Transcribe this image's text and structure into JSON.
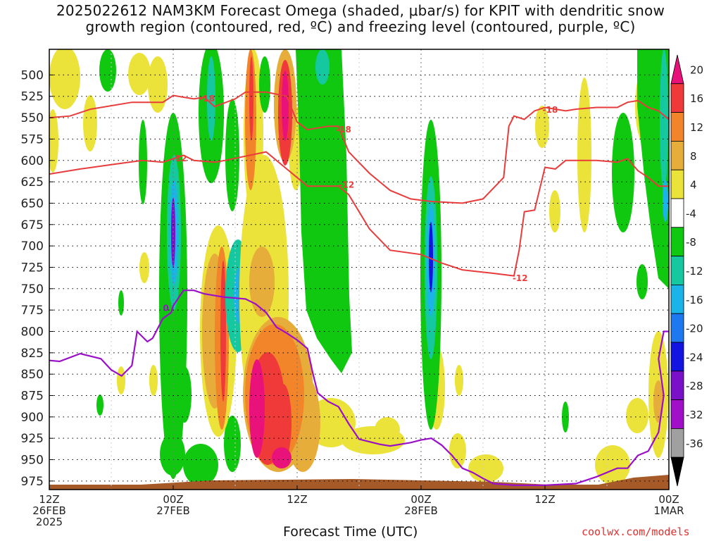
{
  "chart_data": {
    "type": "heatmap",
    "title": "2025022612 NAM3KM Forecast Omega (shaded, μbar/s) for KPIT with dendritic snow\ngrowth region (contoured, red, ºC) and freezing level (contoured, purple, ºC)",
    "xlabel": "Forecast Time (UTC)",
    "ylabel": "",
    "credit": "coolwx.com/models",
    "y_ticks": [
      500,
      525,
      550,
      575,
      600,
      625,
      650,
      675,
      700,
      725,
      750,
      775,
      800,
      825,
      850,
      875,
      900,
      925,
      950,
      975
    ],
    "x_ticks": [
      {
        "hour": 0,
        "lines": [
          "12Z",
          "26FEB",
          "2025"
        ]
      },
      {
        "hour": 12,
        "lines": [
          "00Z",
          "27FEB"
        ]
      },
      {
        "hour": 24,
        "lines": [
          "12Z"
        ]
      },
      {
        "hour": 36,
        "lines": [
          "00Z",
          "28FEB"
        ]
      },
      {
        "hour": 48,
        "lines": [
          "12Z"
        ]
      },
      {
        "hour": 60,
        "lines": [
          "00Z",
          "1MAR"
        ]
      }
    ],
    "xlim_hours": [
      0,
      60
    ],
    "ylim_hpa": [
      470,
      985
    ],
    "grid": true,
    "colorbar": {
      "labels": [
        "20",
        "16",
        "12",
        "8",
        "4",
        "-4",
        "-8",
        "-12",
        "-16",
        "-20",
        "-24",
        "-28",
        "-32",
        "-36"
      ],
      "colors": [
        "#e8127a",
        "#f03a3a",
        "#f2852a",
        "#e6ad3a",
        "#ebe23a",
        "#ffffff",
        "#10c810",
        "#16c8a0",
        "#1ab4e8",
        "#1e78f0",
        "#1414e0",
        "#7a10c8",
        "#a010c8",
        "#a0a0a0",
        "#000000"
      ]
    },
    "series": [
      {
        "label": "-18",
        "color": "#e83c3c",
        "points": [
          [
            0,
            550
          ],
          [
            2,
            548
          ],
          [
            4,
            540
          ],
          [
            8,
            532
          ],
          [
            11,
            532
          ],
          [
            12,
            524
          ],
          [
            14,
            528
          ],
          [
            15,
            526
          ],
          [
            16,
            537
          ],
          [
            18,
            528
          ],
          [
            19,
            520
          ],
          [
            21,
            520
          ],
          [
            23,
            525
          ],
          [
            24,
            555
          ],
          [
            25,
            564
          ],
          [
            27,
            560
          ],
          [
            28,
            560
          ],
          [
            29,
            590
          ],
          [
            31,
            615
          ],
          [
            33,
            635
          ],
          [
            35,
            645
          ],
          [
            37,
            648
          ],
          [
            40,
            650
          ],
          [
            42,
            645
          ],
          [
            44,
            620
          ],
          [
            44.5,
            560
          ],
          [
            45,
            548
          ],
          [
            46,
            552
          ],
          [
            47,
            542
          ],
          [
            48,
            538
          ],
          [
            50,
            542
          ],
          [
            51,
            540
          ],
          [
            53,
            538
          ],
          [
            55,
            538
          ],
          [
            56,
            532
          ],
          [
            57,
            530
          ],
          [
            58,
            538
          ],
          [
            59,
            542
          ],
          [
            60,
            552
          ]
        ]
      },
      {
        "label": "-12",
        "color": "#e83c3c",
        "points": [
          [
            0,
            616
          ],
          [
            3,
            610
          ],
          [
            6,
            605
          ],
          [
            9,
            600
          ],
          [
            11,
            602
          ],
          [
            12,
            598
          ],
          [
            13,
            594
          ],
          [
            14,
            600
          ],
          [
            16,
            602
          ],
          [
            17,
            600
          ],
          [
            19,
            595
          ],
          [
            21,
            590
          ],
          [
            23,
            610
          ],
          [
            25,
            630
          ],
          [
            28,
            630
          ],
          [
            29,
            640
          ],
          [
            31,
            680
          ],
          [
            33,
            705
          ],
          [
            36,
            710
          ],
          [
            38,
            720
          ],
          [
            40,
            728
          ],
          [
            43,
            732
          ],
          [
            45,
            735
          ],
          [
            45.5,
            705
          ],
          [
            46,
            660
          ],
          [
            47,
            658
          ],
          [
            48,
            608
          ],
          [
            49,
            610
          ],
          [
            50,
            600
          ],
          [
            53,
            600
          ],
          [
            55,
            602
          ],
          [
            56,
            598
          ],
          [
            57,
            612
          ],
          [
            58,
            620
          ],
          [
            59,
            630
          ],
          [
            60,
            630
          ]
        ]
      },
      {
        "label": "0",
        "color": "#9a10c8",
        "points": [
          [
            0,
            834
          ],
          [
            1,
            835
          ],
          [
            3,
            826
          ],
          [
            5,
            832
          ],
          [
            6,
            845
          ],
          [
            7,
            852
          ],
          [
            8,
            840
          ],
          [
            8.5,
            800
          ],
          [
            9.5,
            812
          ],
          [
            10,
            808
          ],
          [
            11,
            785
          ],
          [
            11.8,
            778
          ],
          [
            12,
            770
          ],
          [
            13,
            752
          ],
          [
            14,
            752
          ],
          [
            15,
            756
          ],
          [
            17,
            760
          ],
          [
            19,
            762
          ],
          [
            20,
            768
          ],
          [
            21,
            778
          ],
          [
            22,
            795
          ],
          [
            23,
            802
          ],
          [
            24,
            810
          ],
          [
            25,
            820
          ],
          [
            25.5,
            848
          ],
          [
            26,
            872
          ],
          [
            27,
            882
          ],
          [
            28,
            888
          ],
          [
            29,
            908
          ],
          [
            30,
            926
          ],
          [
            32,
            932
          ],
          [
            33,
            934
          ],
          [
            35,
            930
          ],
          [
            36,
            927
          ],
          [
            37,
            925
          ],
          [
            38,
            933
          ],
          [
            39,
            945
          ],
          [
            40,
            960
          ],
          [
            41,
            965
          ],
          [
            42,
            972
          ],
          [
            43,
            978
          ],
          [
            45,
            980
          ],
          [
            48,
            980
          ],
          [
            51,
            978
          ],
          [
            53,
            970
          ],
          [
            55,
            960
          ],
          [
            56,
            960
          ],
          [
            57,
            945
          ],
          [
            58,
            940
          ],
          [
            59,
            918
          ],
          [
            59.5,
            875
          ],
          [
            59,
            832
          ],
          [
            59.5,
            800
          ],
          [
            60,
            800
          ]
        ]
      }
    ],
    "freezing_label": "0"
  }
}
